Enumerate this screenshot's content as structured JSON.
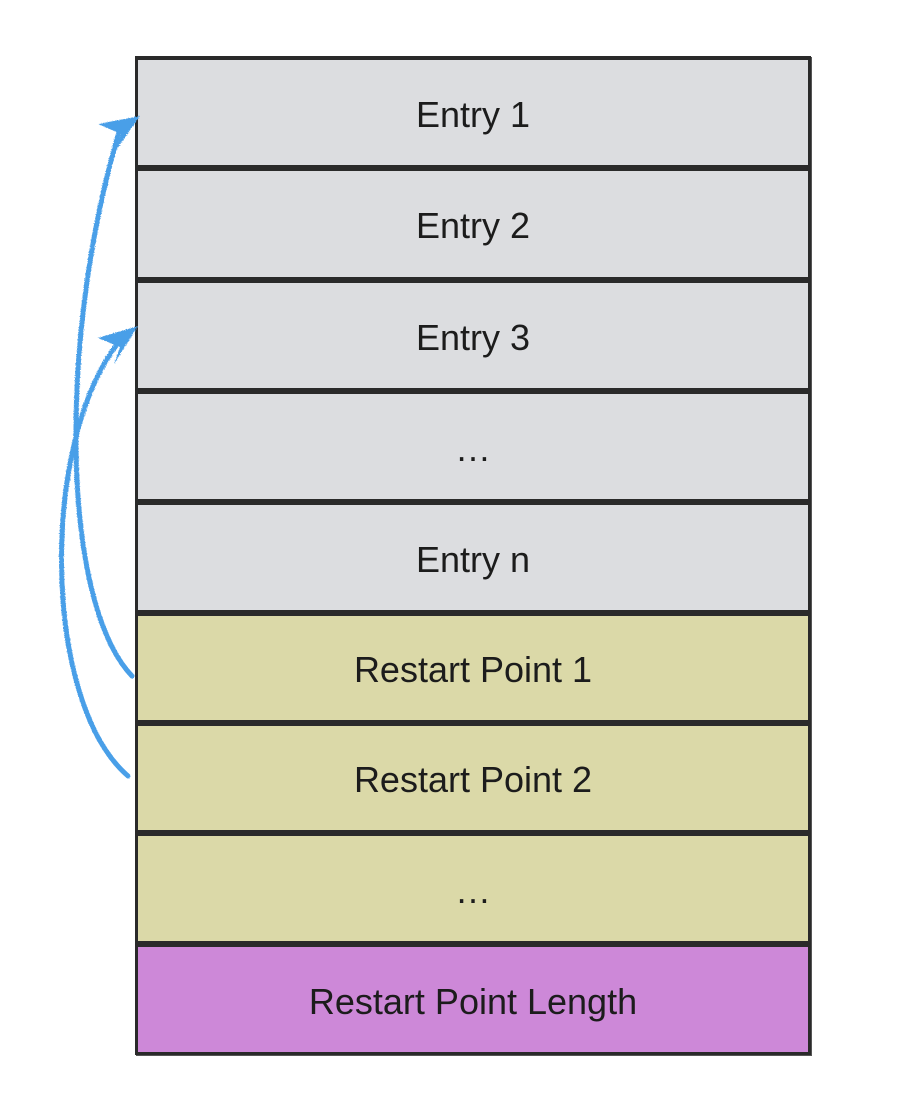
{
  "blocks": [
    {
      "label": "Entry 1",
      "fill": "#dcdde0"
    },
    {
      "label": "Entry 2",
      "fill": "#dcdde0"
    },
    {
      "label": "Entry 3",
      "fill": "#dcdde0"
    },
    {
      "label": "…",
      "fill": "#dcdde0"
    },
    {
      "label": "Entry n",
      "fill": "#dcdde0"
    },
    {
      "label": "Restart Point 1",
      "fill": "#dbd9a8"
    },
    {
      "label": "Restart Point 2",
      "fill": "#dbd9a8"
    },
    {
      "label": "…",
      "fill": "#dbd9a8"
    },
    {
      "label": "Restart Point Length",
      "fill": "#cd88d8"
    }
  ],
  "arrow_color": "#4a9fe8",
  "arrows": [
    {
      "from": "Restart Point 1",
      "to": "Entry 1"
    },
    {
      "from": "Restart Point 2",
      "to": "Entry 3"
    }
  ]
}
